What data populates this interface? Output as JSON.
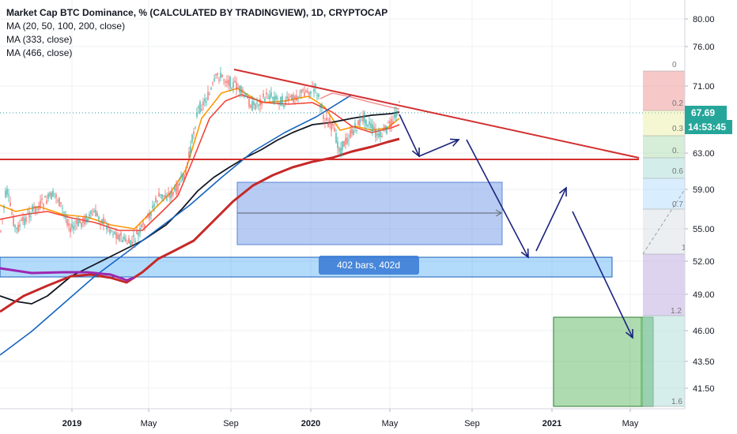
{
  "header": {
    "title": "Market Cap BTC Dominance, % (CALCULATED BY TRADINGVIEW), 1D, CRYPTOCAP",
    "indicators": [
      "MA (20, 50, 100, 200, close)",
      "MA (333, close)",
      "MA (466, close)"
    ]
  },
  "price_axis": {
    "ticks": [
      "80.00",
      "76.00",
      "71.00",
      "67.69",
      "63.00",
      "59.00",
      "55.00",
      "52.00",
      "49.00",
      "46.00",
      "43.50",
      "41.50"
    ],
    "current_price": "67.69",
    "countdown": "14:53:45"
  },
  "time_axis": {
    "ticks": [
      "2019",
      "May",
      "Sep",
      "2020",
      "May",
      "Sep",
      "2021",
      "May"
    ]
  },
  "fib_labels": [
    "0",
    "0.2",
    "0.3",
    "0.",
    "0.6",
    "0.7",
    "1",
    "1.2",
    "1.6"
  ],
  "range_label": "402 bars, 402d",
  "colors": {
    "candle_up": "#26a69a",
    "candle_down": "#ef5350",
    "ma20": "#ff9800",
    "ma50": "#f44336",
    "ma100": "#131722",
    "ma200": "#c62828",
    "ma333": "#1565c0",
    "ma466": "#9c27b0",
    "trend": "#d32f2f",
    "arrows": "#1a237e",
    "box": "#6f98e8",
    "zone": "#2196f3",
    "target": "#4caf50"
  },
  "chart_data": {
    "type": "line",
    "title": "Market Cap BTC Dominance, % (CALCULATED BY TRADINGVIEW), 1D, CRYPTOCAP",
    "ylim": [
      40,
      82
    ],
    "x": [
      "2018-09",
      "2018-10",
      "2018-11",
      "2018-12",
      "2019-01",
      "2019-02",
      "2019-03",
      "2019-04",
      "2019-05",
      "2019-06",
      "2019-07",
      "2019-08",
      "2019-09",
      "2019-10",
      "2019-11",
      "2019-12",
      "2020-01",
      "2020-02",
      "2020-03",
      "2020-04",
      "2020-05"
    ],
    "series": [
      {
        "name": "Market Cap BTC Dominance",
        "values": [
          56,
          53,
          54,
          55,
          52.5,
          55.5,
          54,
          53.5,
          55.5,
          59,
          64,
          69,
          72,
          68.5,
          69,
          69.5,
          68.5,
          67,
          65,
          64.5,
          67.69
        ]
      }
    ],
    "yticks": [
      80,
      76,
      71,
      63,
      59,
      55,
      52,
      49,
      46,
      43.5,
      41.5
    ],
    "xticks": [
      "2019",
      "May",
      "Sep",
      "2020",
      "May",
      "Sep",
      "2021",
      "May"
    ],
    "grid": true
  }
}
